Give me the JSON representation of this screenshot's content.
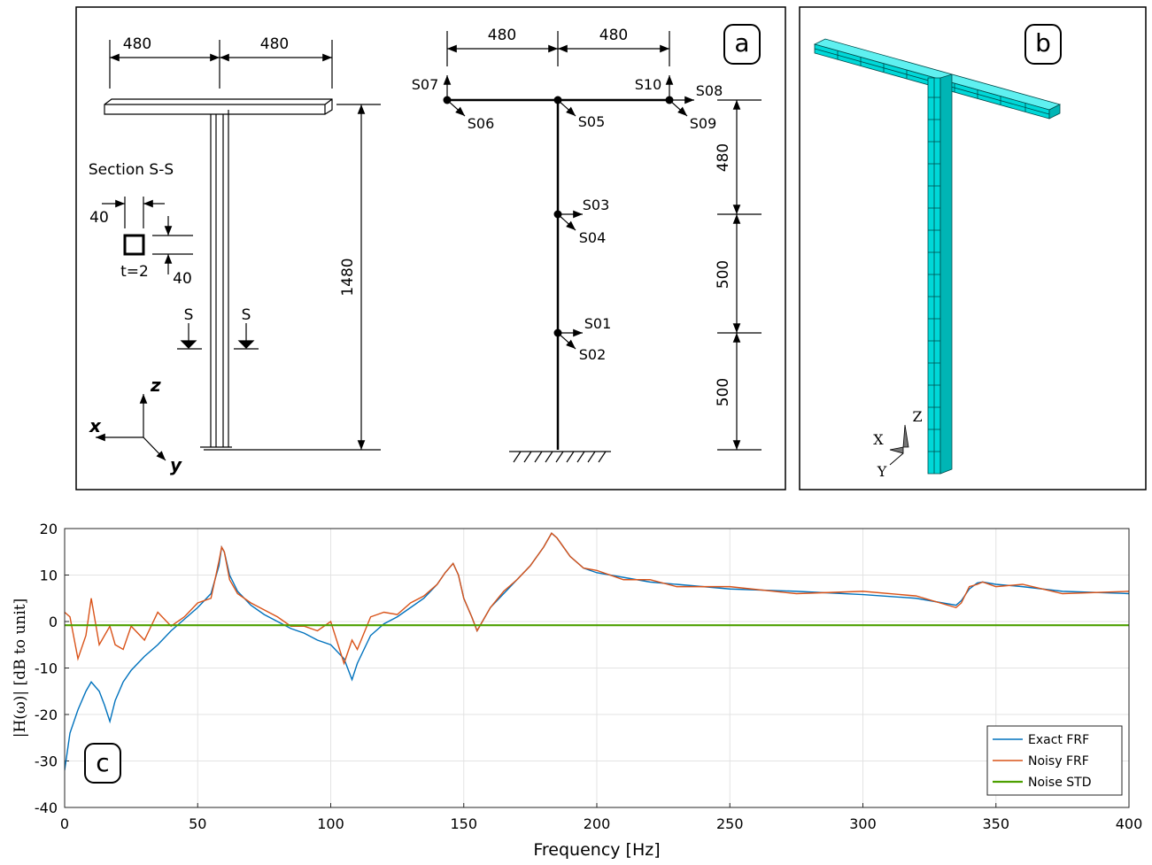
{
  "panel_a": {
    "label": "a",
    "left_frame": {
      "dim_top_left": "480",
      "dim_top_right": "480",
      "dim_height": "1480",
      "section_title": "Section S-S",
      "section_width": "40",
      "section_height": "40",
      "thickness": "t=2",
      "section_mark_left": "S",
      "section_mark_right": "S",
      "axis_x": "x",
      "axis_y": "y",
      "axis_z": "z"
    },
    "right_frame": {
      "dim_top_left": "480",
      "dim_top_right": "480",
      "sensors": [
        "S07",
        "S06",
        "S05",
        "S10",
        "S08",
        "S09",
        "S03",
        "S04",
        "S01",
        "S02"
      ],
      "dim_upper": "480",
      "dim_middle": "500",
      "dim_lower": "500"
    }
  },
  "panel_b": {
    "label": "b",
    "axis_x": "X",
    "axis_y": "Y",
    "axis_z": "Z"
  },
  "chart_data": {
    "type": "line",
    "panel_label": "c",
    "x_label": "Frequency [Hz]",
    "y_label": "|H(ω)| [dB to unit]",
    "x": [
      0,
      2,
      5,
      8,
      10,
      13,
      15,
      17,
      19,
      22,
      25,
      30,
      35,
      40,
      45,
      50,
      55,
      58,
      59,
      60,
      62,
      65,
      70,
      75,
      80,
      85,
      90,
      95,
      100,
      105,
      108,
      110,
      115,
      120,
      125,
      130,
      135,
      140,
      143,
      146,
      148,
      150,
      153,
      155,
      157,
      160,
      165,
      170,
      175,
      180,
      183,
      185,
      190,
      195,
      200,
      210,
      220,
      230,
      250,
      275,
      300,
      320,
      335,
      337,
      340,
      343,
      345,
      350,
      360,
      375,
      400
    ],
    "series": [
      {
        "name": "Exact FRF",
        "color": "#0072bd",
        "values": [
          -32,
          -24,
          -19,
          -15,
          -13,
          -15,
          -18,
          -21.5,
          -17,
          -13,
          -10.5,
          -7.5,
          -5,
          -2,
          0.5,
          3,
          6,
          12,
          16,
          15,
          10,
          6.5,
          3.5,
          1.5,
          0,
          -1.5,
          -2.5,
          -4,
          -5,
          -8,
          -12.5,
          -9,
          -3,
          -0.5,
          1,
          3,
          5,
          8,
          10.5,
          12.5,
          10,
          5,
          1,
          -2,
          0,
          3,
          6,
          9,
          12,
          16,
          19,
          18,
          14,
          11.5,
          10.5,
          9.5,
          8.5,
          8,
          7,
          6.5,
          5.8,
          5,
          3.5,
          4.5,
          7,
          8.3,
          8.5,
          8,
          7.5,
          6.5,
          6
        ]
      },
      {
        "name": "Noisy FRF",
        "color": "#d95319",
        "values": [
          2,
          1,
          -8,
          -3,
          5,
          -5,
          -3,
          -1,
          -5,
          -6,
          -1,
          -4,
          2,
          -1,
          1,
          4,
          5,
          13,
          16,
          15,
          9,
          6,
          4,
          2.5,
          1,
          -1,
          -1,
          -2,
          0,
          -9,
          -4,
          -6,
          1,
          2,
          1.5,
          4,
          5.5,
          8,
          10.5,
          12.5,
          10,
          5,
          1,
          -2,
          0,
          3,
          6.5,
          9,
          12,
          16,
          19,
          18,
          14,
          11.5,
          11,
          9,
          9,
          7.5,
          7.5,
          6,
          6.5,
          5.5,
          3,
          4,
          7.5,
          8,
          8.5,
          7.5,
          8,
          6,
          6.5
        ]
      },
      {
        "name": "Noise STD",
        "color": "#4da000",
        "x": [
          0,
          400
        ],
        "values": [
          -0.8,
          -0.8
        ]
      }
    ],
    "xlim": [
      0,
      400
    ],
    "xticks": [
      0,
      50,
      100,
      150,
      200,
      250,
      300,
      350,
      400
    ],
    "ylim": [
      -40,
      20
    ],
    "yticks": [
      -40,
      -30,
      -20,
      -10,
      0,
      10,
      20
    ],
    "grid": true,
    "legend": "lower-right"
  }
}
